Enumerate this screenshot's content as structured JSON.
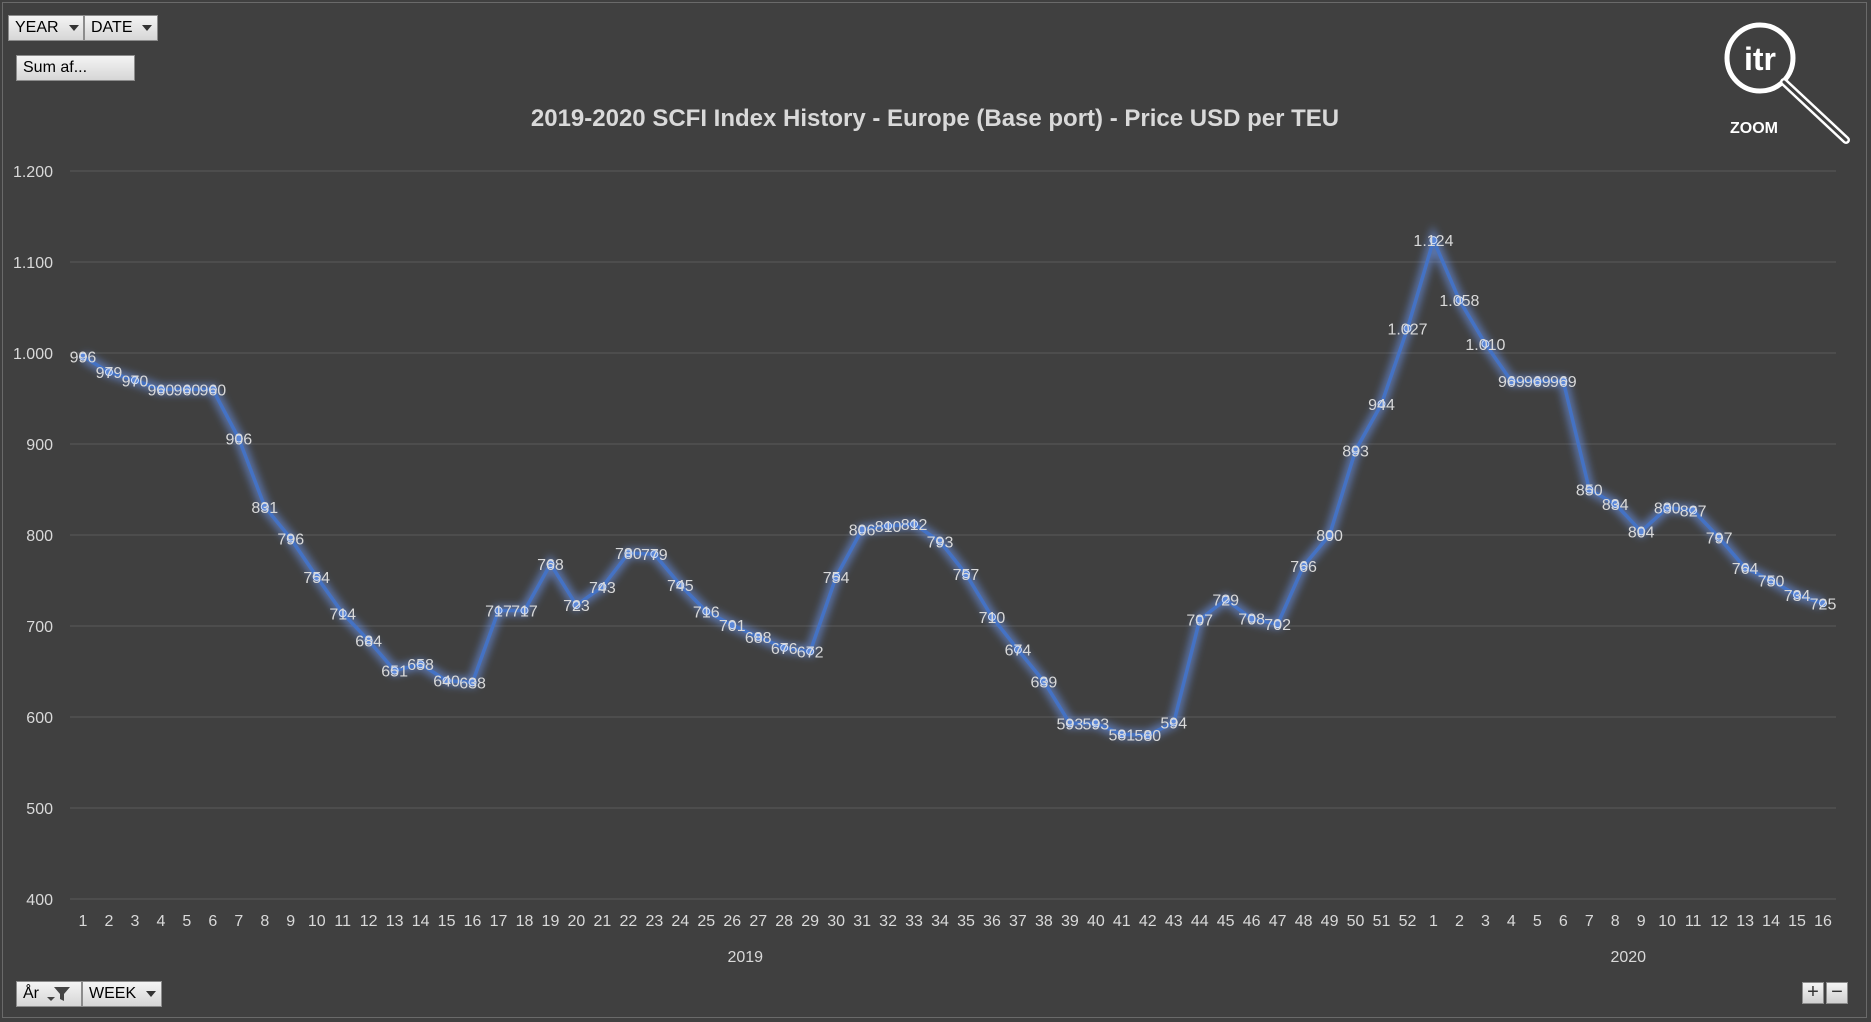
{
  "pivot": {
    "year_button": "YEAR",
    "date_button": "DATE",
    "values_button": "Sum af...",
    "axis_field_1": "År",
    "axis_field_2": "WEEK"
  },
  "logo": {
    "text": "itr",
    "caption": "ZOOM"
  },
  "controls": {
    "plus": "+",
    "minus": "−"
  },
  "colors": {
    "background": "#404040",
    "line": "#4472c4",
    "glow": "#6e9cff",
    "text": "#d9d9d9",
    "grid": "#595959"
  },
  "chart_data": {
    "type": "line",
    "title": "2019-2020 SCFI Index History - Europe (Base port) - Price USD per TEU",
    "ylim": [
      400,
      1200
    ],
    "yticks": [
      400,
      500,
      600,
      700,
      800,
      900,
      1000,
      1100,
      1200
    ],
    "ytick_labels": [
      "400",
      "500",
      "600",
      "700",
      "800",
      "900",
      "1.000",
      "1.100",
      "1.200"
    ],
    "grid": true,
    "legend": "none",
    "groups": [
      {
        "label": "2019",
        "start": 0,
        "count": 52
      },
      {
        "label": "2020",
        "start": 52,
        "count": 16
      }
    ],
    "categories": [
      "1",
      "2",
      "3",
      "4",
      "5",
      "6",
      "7",
      "8",
      "9",
      "10",
      "11",
      "12",
      "13",
      "14",
      "15",
      "16",
      "17",
      "18",
      "19",
      "20",
      "21",
      "22",
      "23",
      "24",
      "25",
      "26",
      "27",
      "28",
      "29",
      "30",
      "31",
      "32",
      "33",
      "34",
      "35",
      "36",
      "37",
      "38",
      "39",
      "40",
      "41",
      "42",
      "43",
      "44",
      "45",
      "46",
      "47",
      "48",
      "49",
      "50",
      "51",
      "52",
      "1",
      "2",
      "3",
      "4",
      "5",
      "6",
      "7",
      "8",
      "9",
      "10",
      "11",
      "12",
      "13",
      "14",
      "15",
      "16"
    ],
    "series": [
      {
        "values": [
          996,
          979,
          970,
          960,
          960,
          960,
          906,
          831,
          796,
          754,
          714,
          684,
          651,
          658,
          640,
          638,
          717,
          717,
          768,
          723,
          743,
          780,
          779,
          745,
          716,
          701,
          688,
          676,
          672,
          754,
          806,
          810,
          812,
          793,
          757,
          710,
          674,
          639,
          593,
          593,
          581,
          580,
          594,
          707,
          729,
          708,
          702,
          766,
          800,
          893,
          944,
          1027,
          1124,
          1058,
          1010,
          969,
          969,
          969,
          850,
          834,
          804,
          830,
          827,
          797,
          764,
          750,
          734,
          725
        ],
        "labels": [
          "996",
          "979",
          "970",
          "960",
          "960",
          "960",
          "906",
          "831",
          "796",
          "754",
          "714",
          "684",
          "651",
          "658",
          "640",
          "638",
          "717",
          "717",
          "768",
          "723",
          "743",
          "780",
          "779",
          "745",
          "716",
          "701",
          "688",
          "676",
          "672",
          "754",
          "806",
          "810",
          "812",
          "793",
          "757",
          "710",
          "674",
          "639",
          "593",
          "593",
          "581",
          "580",
          "594",
          "707",
          "729",
          "708",
          "702",
          "766",
          "800",
          "893",
          "944",
          "1.027",
          "1.124",
          "1.058",
          "1.010",
          "969",
          "969",
          "969",
          "850",
          "834",
          "804",
          "830",
          "827",
          "797",
          "764",
          "750",
          "734",
          "725"
        ]
      }
    ]
  }
}
